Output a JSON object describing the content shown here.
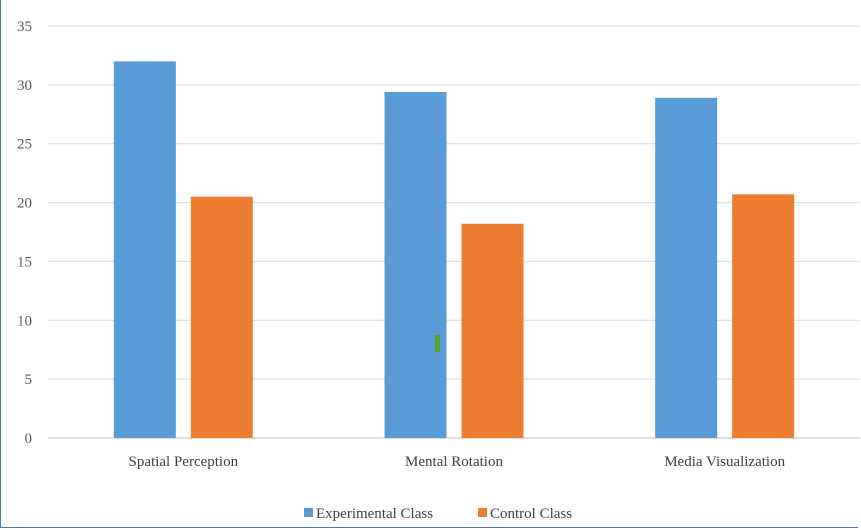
{
  "chart_data": {
    "type": "bar",
    "title": "",
    "xlabel": "",
    "ylabel": "",
    "categories": [
      "Spatial Perception",
      "Mental Rotation",
      "Media Visualization"
    ],
    "series": [
      {
        "name": "Experimental Class",
        "color": "#5b9bd5",
        "values": [
          32,
          29.4,
          28.9
        ]
      },
      {
        "name": "Control Class",
        "color": "#ed7d31",
        "values": [
          20.5,
          18.2,
          20.7
        ]
      }
    ],
    "yticks": [
      0,
      5,
      10,
      15,
      20,
      25,
      30,
      35
    ],
    "ylim": [
      0,
      35
    ],
    "grid": true,
    "legend": "bottom-center",
    "marker_color": "#4ea72c"
  }
}
